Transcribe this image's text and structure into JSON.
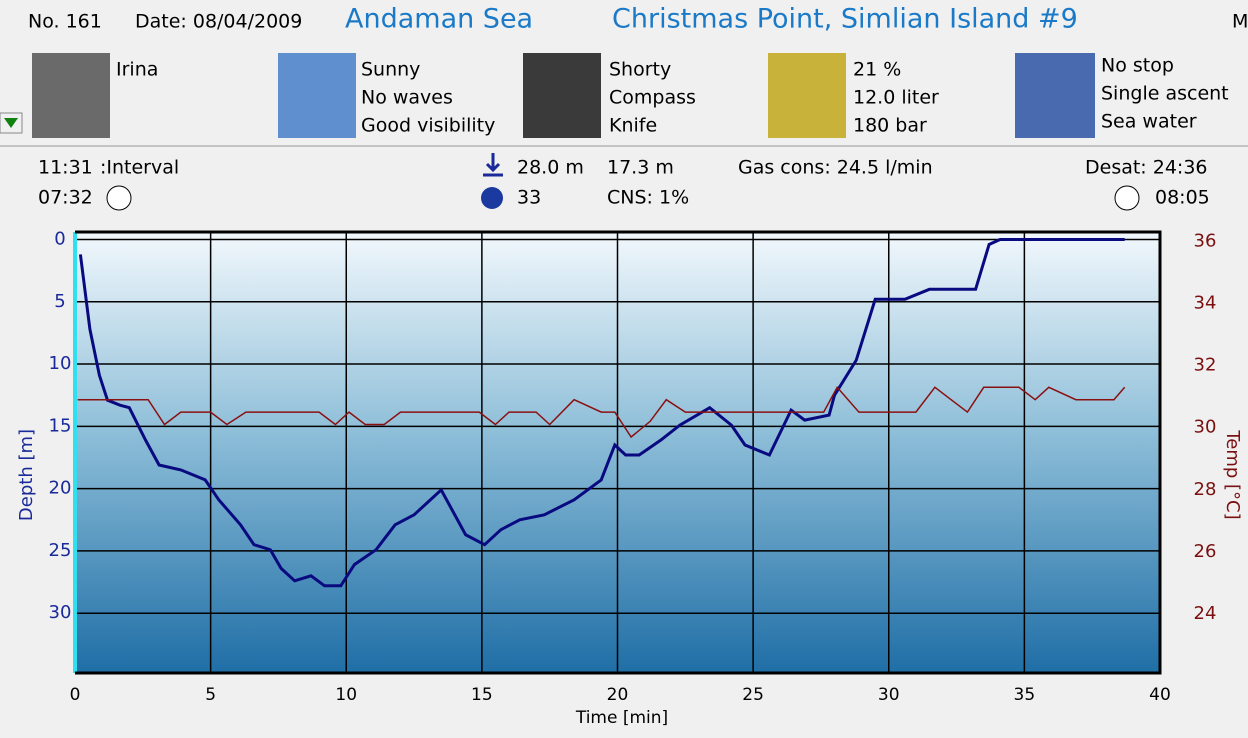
{
  "header": {
    "number": "No. 161",
    "date": "Date: 08/04/2009",
    "region": "Andaman Sea",
    "site": "Christmas Point, Simlian Island #9",
    "cut": "M"
  },
  "info": {
    "buddy": [
      "Irina"
    ],
    "conditions": [
      "Sunny",
      "No waves",
      "Good visibility"
    ],
    "equipment": [
      "Shorty",
      "Compass",
      "Knife"
    ],
    "gas": [
      "21 %",
      "12.0 liter",
      "180 bar"
    ],
    "dive": [
      "No stop",
      "Single ascent",
      "Sea water"
    ]
  },
  "stats": {
    "surface_time": "11:31",
    "interval_label": ":Interval",
    "duration": "07:32",
    "max_depth": "28.0 m",
    "avg_time": "33",
    "avg_depth": "17.3 m",
    "cns": "CNS:  1%",
    "gas_cons": "Gas cons: 24.5 l/min",
    "desat": "Desat: 24:36",
    "end_time": "08:05"
  },
  "chart_data": {
    "type": "line",
    "x_label": "Time [min]",
    "y_label": "Depth [m]",
    "y2_label": "Temp [°C]",
    "xlim": [
      0,
      40
    ],
    "xticks": [
      0,
      5,
      10,
      15,
      20,
      25,
      30,
      35,
      40
    ],
    "ylim": [
      -0.6,
      34.8
    ],
    "y_inverted": true,
    "yticks": [
      0,
      5,
      10,
      15,
      20,
      25,
      30
    ],
    "y2lim": [
      22.1,
      36.3
    ],
    "y2ticks": [
      24,
      26,
      28,
      30,
      32,
      34,
      36
    ],
    "grid": true,
    "series": [
      {
        "name": "Depth",
        "color": "#0a0a80",
        "x": [
          0.2,
          0.55,
          0.9,
          1.2,
          1.66,
          2.0,
          2.6,
          3.1,
          3.9,
          4.8,
          5.3,
          6.1,
          6.6,
          7.2,
          7.6,
          8.1,
          8.7,
          9.2,
          9.8,
          10.3,
          11.1,
          11.8,
          12.5,
          13.5,
          14.4,
          15.1,
          15.7,
          16.4,
          17.3,
          18.4,
          19.4,
          19.9,
          20.3,
          20.8,
          21.6,
          22.3,
          23.4,
          24.2,
          24.7,
          25.6,
          26.4,
          26.9,
          27.8,
          28.0,
          28.8,
          29.5,
          30.6,
          31.5,
          32.6,
          33.2,
          33.7,
          34.1,
          37.8,
          38.7
        ],
        "values": [
          1.2,
          7.2,
          10.9,
          12.9,
          13.3,
          13.5,
          16.1,
          18.1,
          18.5,
          19.3,
          20.9,
          22.9,
          24.5,
          24.9,
          26.4,
          27.4,
          27.0,
          27.8,
          27.8,
          26.1,
          24.9,
          22.9,
          22.1,
          20.1,
          23.7,
          24.5,
          23.3,
          22.5,
          22.1,
          20.9,
          19.3,
          16.5,
          17.3,
          17.3,
          16.1,
          14.9,
          13.5,
          14.9,
          16.5,
          17.3,
          13.7,
          14.5,
          14.1,
          12.5,
          9.7,
          4.8,
          4.8,
          4.0,
          4.0,
          4.0,
          0.4,
          0,
          0,
          0
        ]
      },
      {
        "name": "Temperature",
        "color": "#8b1010",
        "axis": "y2",
        "x": [
          0.1,
          2.7,
          3.3,
          3.9,
          5.0,
          5.6,
          6.3,
          9.0,
          9.6,
          10.1,
          10.7,
          11.4,
          12.0,
          14.9,
          15.5,
          16.0,
          17.0,
          17.5,
          18.4,
          19.4,
          19.9,
          20.5,
          21.2,
          21.8,
          22.5,
          27.6,
          28.1,
          28.9,
          31.0,
          31.7,
          32.3,
          32.9,
          33.5,
          34.8,
          35.4,
          35.9,
          36.9,
          38.3,
          38.7
        ],
        "values": [
          30.9,
          30.9,
          30.1,
          30.5,
          30.5,
          30.1,
          30.5,
          30.5,
          30.1,
          30.5,
          30.1,
          30.1,
          30.5,
          30.5,
          30.1,
          30.5,
          30.5,
          30.1,
          30.9,
          30.5,
          30.5,
          29.7,
          30.2,
          30.9,
          30.5,
          30.5,
          31.3,
          30.5,
          30.5,
          31.3,
          30.9,
          30.5,
          31.3,
          31.3,
          30.9,
          31.3,
          30.9,
          30.9,
          31.3
        ]
      }
    ]
  }
}
